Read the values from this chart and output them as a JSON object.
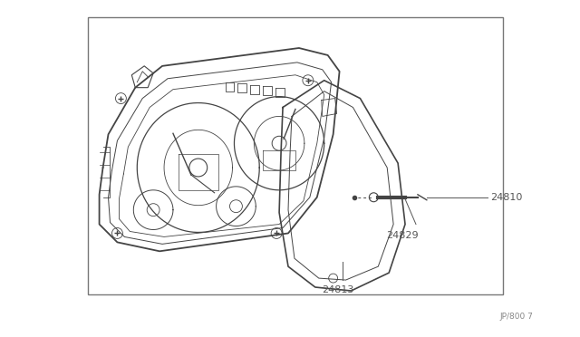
{
  "bg_color": "#ffffff",
  "border_color": "#666666",
  "line_color": "#444444",
  "label_color": "#555555",
  "fig_width": 6.4,
  "fig_height": 3.72,
  "ref_code": "JP/800 7"
}
